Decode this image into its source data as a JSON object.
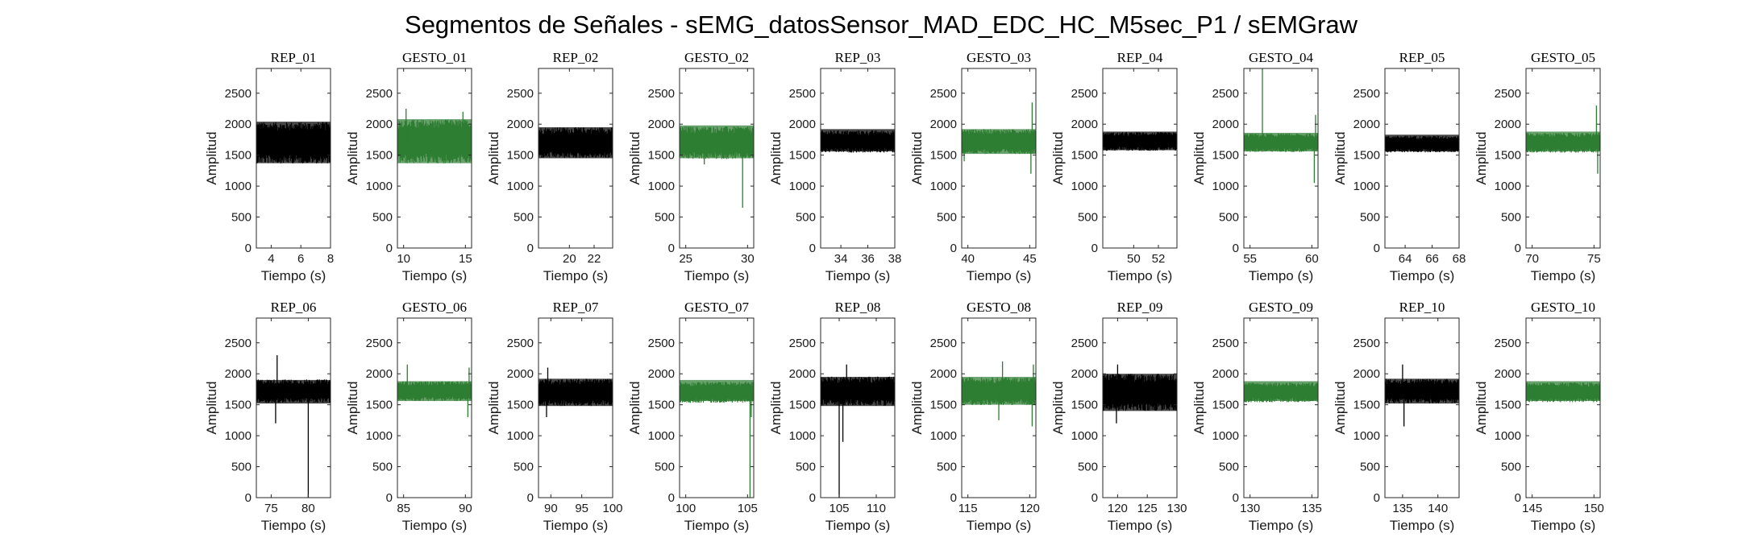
{
  "figure": {
    "title": "Segmentos de Señales - sEMG_datosSensor_MAD_EDC_HC_M5sec_P1 / sEMGraw"
  },
  "colors": {
    "rep": "#000000",
    "gesto": "#2e7d32"
  },
  "chart_data": [
    {
      "type": "line",
      "title": "REP_01",
      "xlabel": "Tiempo (s)",
      "ylabel": "Amplitud",
      "xlim": [
        3,
        8
      ],
      "ylim": [
        0,
        2900
      ],
      "xticks": [
        4,
        6,
        8
      ],
      "yticks": [
        0,
        500,
        1000,
        1500,
        2000,
        2500
      ],
      "color": "#000000",
      "baseline": 1700,
      "band": [
        1370,
        2040
      ],
      "spikes": []
    },
    {
      "type": "line",
      "title": "GESTO_01",
      "xlabel": "Tiempo (s)",
      "ylabel": "Amplitud",
      "xlim": [
        9.5,
        15.5
      ],
      "ylim": [
        0,
        2900
      ],
      "xticks": [
        10,
        15
      ],
      "yticks": [
        0,
        500,
        1000,
        1500,
        2000,
        2500
      ],
      "color": "#2e7d32",
      "baseline": 1720,
      "band": [
        1370,
        2080
      ],
      "spikes": [
        [
          10.2,
          2250
        ],
        [
          14.8,
          2200
        ]
      ]
    },
    {
      "type": "line",
      "title": "REP_02",
      "xlabel": "Tiempo (s)",
      "ylabel": "Amplitud",
      "xlim": [
        17.5,
        23.5
      ],
      "ylim": [
        0,
        2900
      ],
      "xticks": [
        20,
        22
      ],
      "yticks": [
        0,
        500,
        1000,
        1500,
        2000,
        2500
      ],
      "color": "#000000",
      "baseline": 1700,
      "band": [
        1450,
        1950
      ],
      "spikes": []
    },
    {
      "type": "line",
      "title": "GESTO_02",
      "xlabel": "Tiempo (s)",
      "ylabel": "Amplitud",
      "xlim": [
        24.5,
        30.5
      ],
      "ylim": [
        0,
        2900
      ],
      "xticks": [
        25,
        30
      ],
      "yticks": [
        0,
        500,
        1000,
        1500,
        2000,
        2500
      ],
      "color": "#2e7d32",
      "baseline": 1700,
      "band": [
        1450,
        1980
      ],
      "spikes": [
        [
          29.6,
          650
        ],
        [
          26.5,
          1350
        ]
      ]
    },
    {
      "type": "line",
      "title": "REP_03",
      "xlabel": "Tiempo (s)",
      "ylabel": "Amplitud",
      "xlim": [
        32.5,
        38
      ],
      "ylim": [
        0,
        2900
      ],
      "xticks": [
        34,
        36,
        38
      ],
      "yticks": [
        0,
        500,
        1000,
        1500,
        2000,
        2500
      ],
      "color": "#000000",
      "baseline": 1720,
      "band": [
        1560,
        1920
      ],
      "spikes": []
    },
    {
      "type": "line",
      "title": "GESTO_03",
      "xlabel": "Tiempo (s)",
      "ylabel": "Amplitud",
      "xlim": [
        39.5,
        45.5
      ],
      "ylim": [
        0,
        2900
      ],
      "xticks": [
        40,
        45
      ],
      "yticks": [
        0,
        500,
        1000,
        1500,
        2000,
        2500
      ],
      "color": "#2e7d32",
      "baseline": 1720,
      "band": [
        1520,
        1920
      ],
      "spikes": [
        [
          45.2,
          2350
        ],
        [
          45.1,
          1200
        ],
        [
          39.7,
          1400
        ]
      ]
    },
    {
      "type": "line",
      "title": "REP_04",
      "xlabel": "Tiempo (s)",
      "ylabel": "Amplitud",
      "xlim": [
        47.5,
        53.5
      ],
      "ylim": [
        0,
        2900
      ],
      "xticks": [
        50,
        52
      ],
      "yticks": [
        0,
        500,
        1000,
        1500,
        2000,
        2500
      ],
      "color": "#000000",
      "baseline": 1720,
      "band": [
        1580,
        1880
      ],
      "spikes": []
    },
    {
      "type": "line",
      "title": "GESTO_04",
      "xlabel": "Tiempo (s)",
      "ylabel": "Amplitud",
      "xlim": [
        54.5,
        60.5
      ],
      "ylim": [
        0,
        2900
      ],
      "xticks": [
        55,
        60
      ],
      "yticks": [
        0,
        500,
        1000,
        1500,
        2000,
        2500
      ],
      "color": "#2e7d32",
      "baseline": 1700,
      "band": [
        1560,
        1860
      ],
      "spikes": [
        [
          56,
          2900
        ],
        [
          60.3,
          2150
        ],
        [
          60.2,
          1050
        ]
      ]
    },
    {
      "type": "line",
      "title": "REP_05",
      "xlabel": "Tiempo (s)",
      "ylabel": "Amplitud",
      "xlim": [
        62.5,
        68
      ],
      "ylim": [
        0,
        2900
      ],
      "xticks": [
        64,
        66,
        68
      ],
      "yticks": [
        0,
        500,
        1000,
        1500,
        2000,
        2500
      ],
      "color": "#000000",
      "baseline": 1680,
      "band": [
        1560,
        1830
      ],
      "spikes": []
    },
    {
      "type": "line",
      "title": "GESTO_05",
      "xlabel": "Tiempo (s)",
      "ylabel": "Amplitud",
      "xlim": [
        69.5,
        75.5
      ],
      "ylim": [
        0,
        2900
      ],
      "xticks": [
        70,
        75
      ],
      "yticks": [
        0,
        500,
        1000,
        1500,
        2000,
        2500
      ],
      "color": "#2e7d32",
      "baseline": 1700,
      "band": [
        1560,
        1880
      ],
      "spikes": [
        [
          75.2,
          2300
        ],
        [
          75.3,
          1200
        ]
      ]
    },
    {
      "type": "line",
      "title": "REP_06",
      "xlabel": "Tiempo (s)",
      "ylabel": "Amplitud",
      "xlim": [
        73,
        83
      ],
      "ylim": [
        0,
        2900
      ],
      "xticks": [
        75,
        80
      ],
      "yticks": [
        0,
        500,
        1000,
        1500,
        2000,
        2500
      ],
      "color": "#000000",
      "baseline": 1720,
      "band": [
        1520,
        1900
      ],
      "spikes": [
        [
          75.8,
          2300
        ],
        [
          75.6,
          1200
        ],
        [
          80,
          0
        ]
      ]
    },
    {
      "type": "line",
      "title": "GESTO_06",
      "xlabel": "Tiempo (s)",
      "ylabel": "Amplitud",
      "xlim": [
        84.5,
        90.5
      ],
      "ylim": [
        0,
        2900
      ],
      "xticks": [
        85,
        90
      ],
      "yticks": [
        0,
        500,
        1000,
        1500,
        2000,
        2500
      ],
      "color": "#2e7d32",
      "baseline": 1720,
      "band": [
        1560,
        1880
      ],
      "spikes": [
        [
          85.3,
          2150
        ],
        [
          90.3,
          2100
        ],
        [
          90.2,
          1300
        ]
      ]
    },
    {
      "type": "line",
      "title": "REP_07",
      "xlabel": "Tiempo (s)",
      "ylabel": "Amplitud",
      "xlim": [
        88,
        100
      ],
      "ylim": [
        0,
        2900
      ],
      "xticks": [
        90,
        95,
        100
      ],
      "yticks": [
        0,
        500,
        1000,
        1500,
        2000,
        2500
      ],
      "color": "#000000",
      "baseline": 1700,
      "band": [
        1480,
        1920
      ],
      "spikes": [
        [
          89.5,
          2100
        ],
        [
          89.3,
          1300
        ]
      ]
    },
    {
      "type": "line",
      "title": "GESTO_07",
      "xlabel": "Tiempo (s)",
      "ylabel": "Amplitud",
      "xlim": [
        99.5,
        105.5
      ],
      "ylim": [
        0,
        2900
      ],
      "xticks": [
        100,
        105
      ],
      "yticks": [
        0,
        500,
        1000,
        1500,
        2000,
        2500
      ],
      "color": "#2e7d32",
      "baseline": 1700,
      "band": [
        1560,
        1900
      ],
      "spikes": [
        [
          105.2,
          0
        ],
        [
          105.3,
          1300
        ]
      ]
    },
    {
      "type": "line",
      "title": "REP_08",
      "xlabel": "Tiempo (s)",
      "ylabel": "Amplitud",
      "xlim": [
        102.5,
        112.5
      ],
      "ylim": [
        0,
        2900
      ],
      "xticks": [
        105,
        110
      ],
      "yticks": [
        0,
        500,
        1000,
        1500,
        2000,
        2500
      ],
      "color": "#000000",
      "baseline": 1720,
      "band": [
        1480,
        1950
      ],
      "spikes": [
        [
          105,
          0
        ],
        [
          105.5,
          900
        ],
        [
          106,
          2150
        ]
      ]
    },
    {
      "type": "line",
      "title": "GESTO_08",
      "xlabel": "Tiempo (s)",
      "ylabel": "Amplitud",
      "xlim": [
        114.5,
        120.5
      ],
      "ylim": [
        0,
        2900
      ],
      "xticks": [
        115,
        120
      ],
      "yticks": [
        0,
        500,
        1000,
        1500,
        2000,
        2500
      ],
      "color": "#2e7d32",
      "baseline": 1720,
      "band": [
        1500,
        1950
      ],
      "spikes": [
        [
          117.8,
          2200
        ],
        [
          117.5,
          1250
        ],
        [
          120.3,
          2150
        ],
        [
          120.2,
          1150
        ]
      ]
    },
    {
      "type": "line",
      "title": "REP_09",
      "xlabel": "Tiempo (s)",
      "ylabel": "Amplitud",
      "xlim": [
        117.5,
        130
      ],
      "ylim": [
        0,
        2900
      ],
      "xticks": [
        120,
        125,
        130
      ],
      "yticks": [
        0,
        500,
        1000,
        1500,
        2000,
        2500
      ],
      "color": "#000000",
      "baseline": 1700,
      "band": [
        1400,
        2000
      ],
      "spikes": [
        [
          120,
          2150
        ],
        [
          119.8,
          1200
        ]
      ]
    },
    {
      "type": "line",
      "title": "GESTO_09",
      "xlabel": "Tiempo (s)",
      "ylabel": "Amplitud",
      "xlim": [
        129.5,
        135.5
      ],
      "ylim": [
        0,
        2900
      ],
      "xticks": [
        130,
        135
      ],
      "yticks": [
        0,
        500,
        1000,
        1500,
        2000,
        2500
      ],
      "color": "#2e7d32",
      "baseline": 1700,
      "band": [
        1560,
        1880
      ],
      "spikes": []
    },
    {
      "type": "line",
      "title": "REP_10",
      "xlabel": "Tiempo (s)",
      "ylabel": "Amplitud",
      "xlim": [
        132.5,
        143
      ],
      "ylim": [
        0,
        2900
      ],
      "xticks": [
        135,
        140
      ],
      "yticks": [
        0,
        500,
        1000,
        1500,
        2000,
        2500
      ],
      "color": "#000000",
      "baseline": 1720,
      "band": [
        1520,
        1920
      ],
      "spikes": [
        [
          135,
          2150
        ],
        [
          135.2,
          1150
        ]
      ]
    },
    {
      "type": "line",
      "title": "GESTO_10",
      "xlabel": "Tiempo (s)",
      "ylabel": "Amplitud",
      "xlim": [
        144.5,
        150.5
      ],
      "ylim": [
        0,
        2900
      ],
      "xticks": [
        145,
        150
      ],
      "yticks": [
        0,
        500,
        1000,
        1500,
        2000,
        2500
      ],
      "color": "#2e7d32",
      "baseline": 1700,
      "band": [
        1560,
        1880
      ],
      "spikes": []
    }
  ]
}
